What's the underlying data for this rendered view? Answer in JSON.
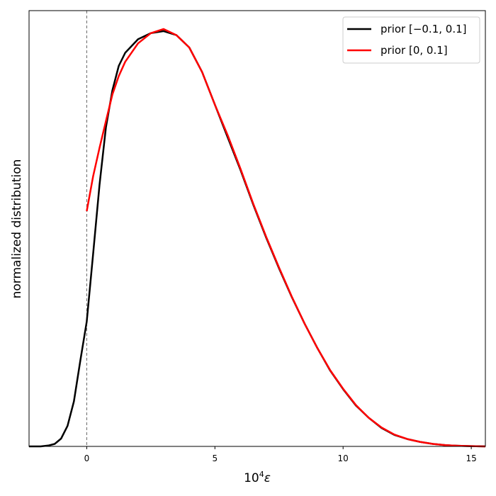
{
  "chart_data": {
    "type": "line",
    "xlabel_base": "10",
    "xlabel_exp": "4",
    "xlabel_var": "ε",
    "ylabel": "normalized distribution",
    "xlim": [
      -2.25,
      15.55
    ],
    "ylim": [
      0,
      1.065
    ],
    "xticks": [
      {
        "value": 0,
        "label": "0"
      },
      {
        "value": 5,
        "label": "5"
      },
      {
        "value": 10,
        "label": "10"
      },
      {
        "value": 15,
        "label": "15"
      }
    ],
    "yticks_shown": false,
    "grid": false,
    "legend_position": "top-right",
    "vline": {
      "x": 0,
      "style": "dashed",
      "color": "#666666"
    },
    "series": [
      {
        "name": "prior [−0.1, 0.1]",
        "color": "#000000",
        "x": [
          -2.25,
          -1.8,
          -1.5,
          -1.25,
          -1.0,
          -0.75,
          -0.5,
          -0.25,
          0.0,
          0.25,
          0.5,
          0.75,
          1.0,
          1.25,
          1.5,
          2.0,
          2.5,
          3.0,
          3.5,
          4.0,
          4.5,
          5.0,
          5.5,
          6.0,
          6.5,
          7.0,
          7.5,
          8.0,
          8.5,
          9.0,
          9.5,
          10.0,
          10.5,
          11.0,
          11.5,
          12.0,
          12.5,
          13.0,
          13.5,
          14.0,
          14.5,
          15.0,
          15.55
        ],
        "y": [
          0.0,
          0.0,
          0.002,
          0.006,
          0.019,
          0.05,
          0.11,
          0.21,
          0.305,
          0.47,
          0.64,
          0.78,
          0.87,
          0.93,
          0.962,
          0.995,
          1.01,
          1.015,
          1.005,
          0.975,
          0.915,
          0.835,
          0.755,
          0.675,
          0.59,
          0.51,
          0.435,
          0.365,
          0.3,
          0.24,
          0.185,
          0.14,
          0.1,
          0.07,
          0.045,
          0.028,
          0.018,
          0.011,
          0.006,
          0.003,
          0.0015,
          0.0007,
          0.0
        ]
      },
      {
        "name": "prior [0, 0.1]",
        "color": "#ff0000",
        "x": [
          0.0,
          0.25,
          0.5,
          0.75,
          1.0,
          1.25,
          1.5,
          2.0,
          2.5,
          3.0,
          3.5,
          4.0,
          4.5,
          5.0,
          5.5,
          6.0,
          6.5,
          7.0,
          7.5,
          8.0,
          8.5,
          9.0,
          9.5,
          10.0,
          10.5,
          11.0,
          11.5,
          12.0,
          12.5,
          13.0,
          13.5,
          14.0,
          14.5,
          15.0,
          15.55
        ],
        "y": [
          0.575,
          0.66,
          0.73,
          0.795,
          0.86,
          0.905,
          0.94,
          0.985,
          1.01,
          1.02,
          1.005,
          0.975,
          0.915,
          0.835,
          0.76,
          0.678,
          0.592,
          0.512,
          0.437,
          0.366,
          0.3,
          0.24,
          0.186,
          0.141,
          0.101,
          0.07,
          0.046,
          0.029,
          0.018,
          0.011,
          0.006,
          0.003,
          0.0015,
          0.0007,
          0.0
        ]
      }
    ]
  }
}
